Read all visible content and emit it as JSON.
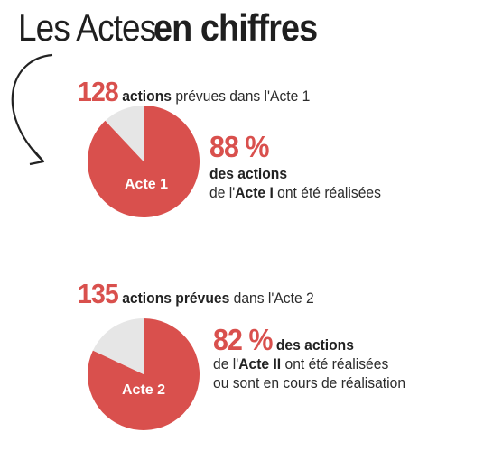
{
  "title": {
    "part1": "Les Actes",
    "part2": "en chiffres"
  },
  "colors": {
    "accent": "#d9504d",
    "remainder": "#e6e6e6",
    "text": "#222222"
  },
  "icons": {
    "arrow": "curved-arrow-icon"
  },
  "acte1": {
    "count": "128",
    "count_bold": "actions",
    "count_rest": "prévues dans l'Acte 1",
    "pie_label": "Acte 1",
    "percent": "88 %",
    "desc_line1": "des actions",
    "desc_pre": "de l'",
    "desc_bold": "Acte I",
    "desc_post": "ont été réalisées"
  },
  "acte2": {
    "count": "135",
    "count_bold": "actions prévues",
    "count_rest": "dans l'Acte 2",
    "pie_label": "Acte 2",
    "percent": "82 %",
    "desc_inline": "des actions",
    "desc_pre": "de l'",
    "desc_bold": "Acte II",
    "desc_post": "ont été réalisées",
    "desc_line3": "ou sont en cours de réalisation"
  },
  "chart_data": [
    {
      "type": "pie",
      "categories": [
        "Acte 1",
        ""
      ],
      "values": [
        88,
        12
      ]
    },
    {
      "type": "pie",
      "categories": [
        "Acte 2",
        ""
      ],
      "values": [
        82,
        18
      ]
    }
  ]
}
